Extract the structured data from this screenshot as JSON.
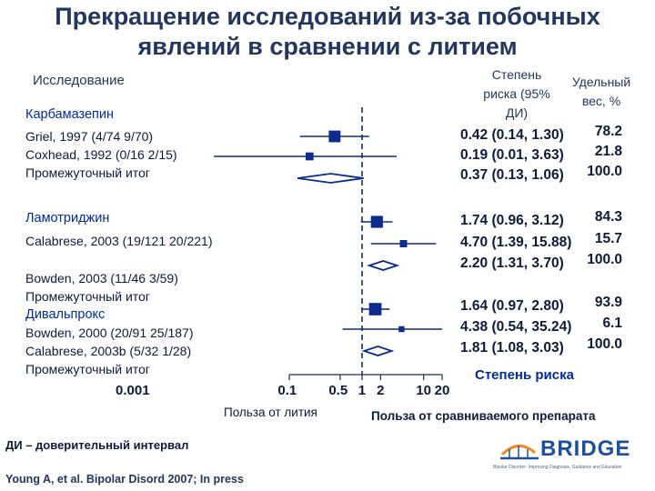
{
  "title": "Прекращение исследований из-за побочных явлений в сравнении с литием",
  "header": {
    "study_label": "Исследование",
    "risk_label": "Степень риска (95% ДИ)",
    "weight_label": "Удельный вес, %"
  },
  "footer": {
    "ci_note": "ДИ – доверительный интервал",
    "citation": "Young A, et al. Bipolar Disord 2007; In press",
    "logo_text": "BRIDGE",
    "logo_tagline": "Bipolar Disorder: Improving Diagnosis, Guidance and Education"
  },
  "colors": {
    "marker": "#0d2b8c",
    "axis": "#1c2b5a",
    "reference_line": "#1c2b5a",
    "group_label": "#002b9a",
    "logo": "#1e4f9c",
    "logo_accent": "#f08a24"
  },
  "chart_data": {
    "type": "forest",
    "x_scale": "log",
    "xlim": [
      0.001,
      20
    ],
    "xticks": [
      0.001,
      0.1,
      0.5,
      1,
      2,
      10,
      20
    ],
    "xtick_labels": [
      "0.001",
      "0.1",
      "0.5",
      "1",
      "2",
      "10",
      "20"
    ],
    "xlabel": "Степень риска",
    "left_label": "Польза от лития",
    "right_label": "Польза от сравниваемого препарата",
    "reference_line": 1,
    "groups": [
      {
        "name": "Карбамазепин",
        "rows": [
          {
            "label": "Griel, 1997 (4/74 9/70)",
            "or": 0.42,
            "lo": 0.14,
            "hi": 1.3,
            "text": "0.42 (0.14, 1.30)",
            "weight": "78.2",
            "kind": "study"
          },
          {
            "label": "Coxhead, 1992 (0/16 2/15)",
            "or": 0.19,
            "lo": 0.01,
            "hi": 3.63,
            "text": "0.19 (0.01, 3.63)",
            "weight": "21.8",
            "kind": "study"
          },
          {
            "label": "Промежуточный итог",
            "or": 0.37,
            "lo": 0.13,
            "hi": 1.06,
            "text": "0.37 (0.13, 1.06)",
            "weight": "100.0",
            "kind": "subtotal"
          }
        ]
      },
      {
        "name": "Ламотриджин",
        "rows": [
          {
            "label": "Calabrese, 2003 (19/121 20/221)",
            "or": 1.74,
            "lo": 0.96,
            "hi": 3.12,
            "text": "1.74 (0.96, 3.12)",
            "weight": "84.3",
            "kind": "study"
          },
          {
            "label": "Bowden, 2003 (11/46 3/59)",
            "or": 4.7,
            "lo": 1.39,
            "hi": 15.88,
            "text": "4.70 (1.39, 15.88)",
            "weight": "15.7",
            "kind": "study"
          },
          {
            "label": "Промежуточный итог",
            "or": 2.2,
            "lo": 1.31,
            "hi": 3.7,
            "text": "2.20 (1.31, 3.70)",
            "weight": "100.0",
            "kind": "subtotal"
          }
        ]
      },
      {
        "name": "Дивальпрокс",
        "rows": [
          {
            "label": "Bowden, 2000 (20/91 25/187)",
            "or": 1.64,
            "lo": 0.97,
            "hi": 2.8,
            "text": "1.64 (0.97, 2.80)",
            "weight": "93.9",
            "kind": "study"
          },
          {
            "label": "Calabrese, 2003b (5/32 1/28)",
            "or": 4.38,
            "lo": 0.54,
            "hi": 35.24,
            "text": "4.38 (0.54, 35.24)",
            "weight": "6.1",
            "kind": "study"
          },
          {
            "label": "Промежуточный итог",
            "or": 1.81,
            "lo": 1.08,
            "hi": 3.03,
            "text": "1.81 (1.08, 3.03)",
            "weight": "100.0",
            "kind": "subtotal"
          }
        ]
      }
    ]
  }
}
